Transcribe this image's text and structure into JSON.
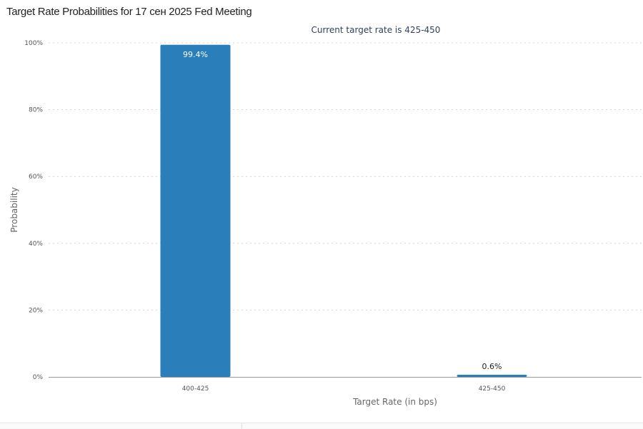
{
  "page": {
    "title": "Target Rate Probabilities for 17 сен 2025 Fed Meeting"
  },
  "chart_data": {
    "type": "bar",
    "title": "Target Rate Probabilities for 17 сен 2025 Fed Meeting",
    "subtitle": "Current target rate is 425-450",
    "xlabel": "Target Rate (in bps)",
    "ylabel": "Probability",
    "categories": [
      "400-425",
      "425-450"
    ],
    "values": [
      99.4,
      0.6
    ],
    "data_labels": [
      "99.4%",
      "0.6%"
    ],
    "ylim": [
      0,
      100
    ],
    "yticks": [
      0,
      20,
      40,
      60,
      80,
      100
    ],
    "ytick_labels": [
      "0%",
      "20%",
      "40%",
      "60%",
      "80%",
      "100%"
    ],
    "grid": "horizontal dotted",
    "legend": "none",
    "bar_color": "#2a7fba"
  }
}
